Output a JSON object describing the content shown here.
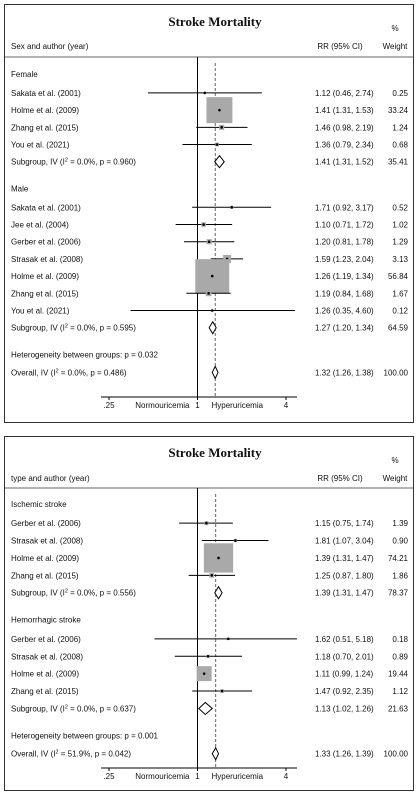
{
  "chart_data": [
    {
      "type": "forest",
      "title": "Stroke Mortality",
      "header_left": "Sex and author (year)",
      "header_rr": "RR (95% CI)",
      "header_weight_symbol": "%",
      "header_weight": "Weight",
      "x_scale": "log",
      "x_ticks": [
        ".25",
        "1",
        "4"
      ],
      "x_tick_values": [
        0.25,
        1,
        4
      ],
      "x_label_left": "Normouricemia",
      "x_label_right": "Hyperuricemia",
      "null_line": 1,
      "overall_line": 1.32,
      "groups": [
        {
          "label": "Female",
          "studies": [
            {
              "label": "Sakata et al. (2001)",
              "rr": 1.12,
              "lo": 0.46,
              "hi": 2.74,
              "rr_text": "1.12 (0.46, 2.74)",
              "weight": 0.25,
              "weight_text": "0.25"
            },
            {
              "label": "Holme et al. (2009)",
              "rr": 1.41,
              "lo": 1.31,
              "hi": 1.53,
              "rr_text": "1.41 (1.31, 1.53)",
              "weight": 33.24,
              "weight_text": "33.24"
            },
            {
              "label": "Zhang et al. (2015)",
              "rr": 1.46,
              "lo": 0.98,
              "hi": 2.19,
              "rr_text": "1.46 (0.98, 2.19)",
              "weight": 1.24,
              "weight_text": "1.24"
            },
            {
              "label": "You et al. (2021)",
              "rr": 1.36,
              "lo": 0.79,
              "hi": 2.34,
              "rr_text": "1.36 (0.79, 2.34)",
              "weight": 0.68,
              "weight_text": "0.68"
            }
          ],
          "subtotal": {
            "label_pre": "Subgroup, IV (I",
            "label_post": " = 0.0%, p = 0.960)",
            "rr": 1.41,
            "lo": 1.31,
            "hi": 1.52,
            "rr_text": "1.41 (1.31, 1.52)",
            "weight_text": "35.41"
          }
        },
        {
          "label": "Male",
          "studies": [
            {
              "label": "Sakata et al. (2001)",
              "rr": 1.71,
              "lo": 0.92,
              "hi": 3.17,
              "rr_text": "1.71 (0.92, 3.17)",
              "weight": 0.52,
              "weight_text": "0.52"
            },
            {
              "label": "Jee et al. (2004)",
              "rr": 1.1,
              "lo": 0.71,
              "hi": 1.72,
              "rr_text": "1.10 (0.71, 1.72)",
              "weight": 1.02,
              "weight_text": "1.02"
            },
            {
              "label": "Gerber et al. (2006)",
              "rr": 1.2,
              "lo": 0.81,
              "hi": 1.78,
              "rr_text": "1.20 (0.81, 1.78)",
              "weight": 1.29,
              "weight_text": "1.29"
            },
            {
              "label": "Strasak et al. (2008)",
              "rr": 1.59,
              "lo": 1.23,
              "hi": 2.04,
              "rr_text": "1.59 (1.23, 2.04)",
              "weight": 3.13,
              "weight_text": "3.13"
            },
            {
              "label": "Holme et al. (2009)",
              "rr": 1.26,
              "lo": 1.19,
              "hi": 1.34,
              "rr_text": "1.26 (1.19, 1.34)",
              "weight": 56.84,
              "weight_text": "56.84"
            },
            {
              "label": "Zhang et al. (2015)",
              "rr": 1.19,
              "lo": 0.84,
              "hi": 1.68,
              "rr_text": "1.19 (0.84, 1.68)",
              "weight": 1.67,
              "weight_text": "1.67"
            },
            {
              "label": "You et al. (2021)",
              "rr": 1.26,
              "lo": 0.35,
              "hi": 4.6,
              "rr_text": "1.26 (0.35, 4.60)",
              "weight": 0.12,
              "weight_text": "0.12"
            }
          ],
          "subtotal": {
            "label_pre": "Subgroup, IV (I",
            "label_post": " = 0.0%, p = 0.595)",
            "rr": 1.27,
            "lo": 1.2,
            "hi": 1.34,
            "rr_text": "1.27 (1.20, 1.34)",
            "weight_text": "64.59"
          }
        }
      ],
      "heterogeneity": "Heterogeneity between groups: p = 0.032",
      "overall": {
        "label_pre": "Overall, IV (I",
        "label_post": " = 0.0%, p = 0.486)",
        "rr": 1.32,
        "lo": 1.26,
        "hi": 1.38,
        "rr_text": "1.32 (1.26, 1.38)",
        "weight_text": "100.00"
      }
    },
    {
      "type": "forest",
      "title": "Stroke Mortality",
      "header_left": "type and author (year)",
      "header_rr": "RR (95% CI)",
      "header_weight_symbol": "%",
      "header_weight": "Weight",
      "x_scale": "log",
      "x_ticks": [
        ".25",
        "1",
        "4"
      ],
      "x_tick_values": [
        0.25,
        1,
        4
      ],
      "x_label_left": "Normouricemia",
      "x_label_right": "Hyperuricemia",
      "null_line": 1,
      "overall_line": 1.33,
      "groups": [
        {
          "label": "Ischemic stroke",
          "studies": [
            {
              "label": "Gerber et al. (2006)",
              "rr": 1.15,
              "lo": 0.75,
              "hi": 1.74,
              "rr_text": "1.15 (0.75, 1.74)",
              "weight": 1.39,
              "weight_text": "1.39"
            },
            {
              "label": "Strasak  et al. (2008)",
              "rr": 1.81,
              "lo": 1.07,
              "hi": 3.04,
              "rr_text": "1.81 (1.07, 3.04)",
              "weight": 0.9,
              "weight_text": "0.90"
            },
            {
              "label": "Holme et al. (2009)",
              "rr": 1.39,
              "lo": 1.31,
              "hi": 1.47,
              "rr_text": "1.39 (1.31, 1.47)",
              "weight": 74.21,
              "weight_text": "74.21"
            },
            {
              "label": "Zhang  et al. (2015)",
              "rr": 1.25,
              "lo": 0.87,
              "hi": 1.8,
              "rr_text": "1.25 (0.87, 1.80)",
              "weight": 1.86,
              "weight_text": "1.86"
            }
          ],
          "subtotal": {
            "label_pre": "Subgroup, IV (I",
            "label_post": " = 0.0%, p = 0.556)",
            "rr": 1.39,
            "lo": 1.31,
            "hi": 1.47,
            "rr_text": "1.39 (1.31, 1.47)",
            "weight_text": "78.37"
          }
        },
        {
          "label": "Hemorrhagic stroke",
          "studies": [
            {
              "label": "Gerber et al. (2006)",
              "rr": 1.62,
              "lo": 0.51,
              "hi": 5.18,
              "rr_text": "1.62 (0.51, 5.18)",
              "weight": 0.18,
              "weight_text": "0.18"
            },
            {
              "label": "Strasak  et al. (2008)",
              "rr": 1.18,
              "lo": 0.7,
              "hi": 2.01,
              "rr_text": "1.18 (0.70, 2.01)",
              "weight": 0.89,
              "weight_text": "0.89"
            },
            {
              "label": "Holme et al. (2009)",
              "rr": 1.11,
              "lo": 0.99,
              "hi": 1.24,
              "rr_text": "1.11 (0.99, 1.24)",
              "weight": 19.44,
              "weight_text": "19.44"
            },
            {
              "label": "Zhang  et al. (2015)",
              "rr": 1.47,
              "lo": 0.92,
              "hi": 2.35,
              "rr_text": "1.47 (0.92, 2.35)",
              "weight": 1.12,
              "weight_text": "1.12"
            }
          ],
          "subtotal": {
            "label_pre": "Subgroup, IV (I",
            "label_post": " = 0.0%, p = 0.637)",
            "rr": 1.13,
            "lo": 1.02,
            "hi": 1.26,
            "rr_text": "1.13 (1.02, 1.26)",
            "weight_text": "21.63"
          }
        }
      ],
      "heterogeneity": "Heterogeneity between groups: p = 0.001",
      "overall": {
        "label_pre": "Overall, IV (I",
        "label_post": " = 51.9%, p = 0.042)",
        "rr": 1.33,
        "lo": 1.26,
        "hi": 1.39,
        "rr_text": "1.33 (1.26, 1.39)",
        "weight_text": "100.00"
      }
    }
  ]
}
